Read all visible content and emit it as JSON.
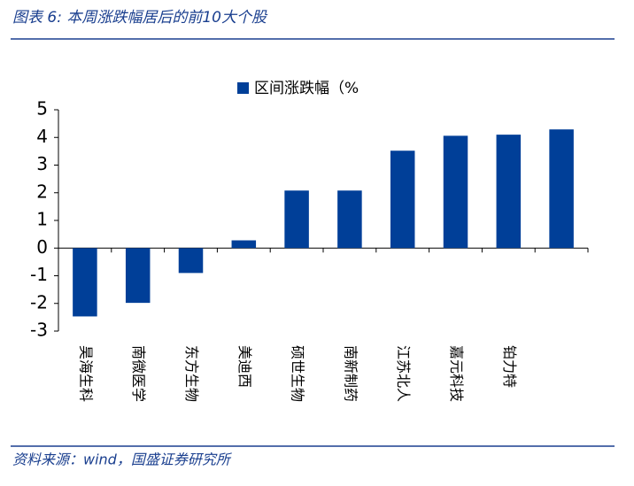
{
  "chart_data": {
    "type": "bar",
    "title": "图表 6:  本周涨跌幅居后的前10大个股",
    "source": "资料来源：wind，国盛证券研究所",
    "categories": [
      "昊海生科",
      "南微医学",
      "东方生物",
      "美迪西",
      "硕世生物",
      "南新制药",
      "江苏北人",
      "嘉元科技",
      "铂力特",
      ""
    ],
    "series": [
      {
        "name": "区间涨跌幅（%",
        "color": "#003f98",
        "values": [
          -2.47,
          -1.98,
          -0.9,
          0.28,
          2.08,
          2.08,
          3.52,
          4.06,
          4.1,
          4.29
        ]
      }
    ],
    "ylim": [
      -3,
      5
    ],
    "yticks": [
      -3,
      -2,
      -1,
      0,
      1,
      2,
      3,
      4,
      5
    ],
    "grid": false,
    "legend": "top"
  }
}
